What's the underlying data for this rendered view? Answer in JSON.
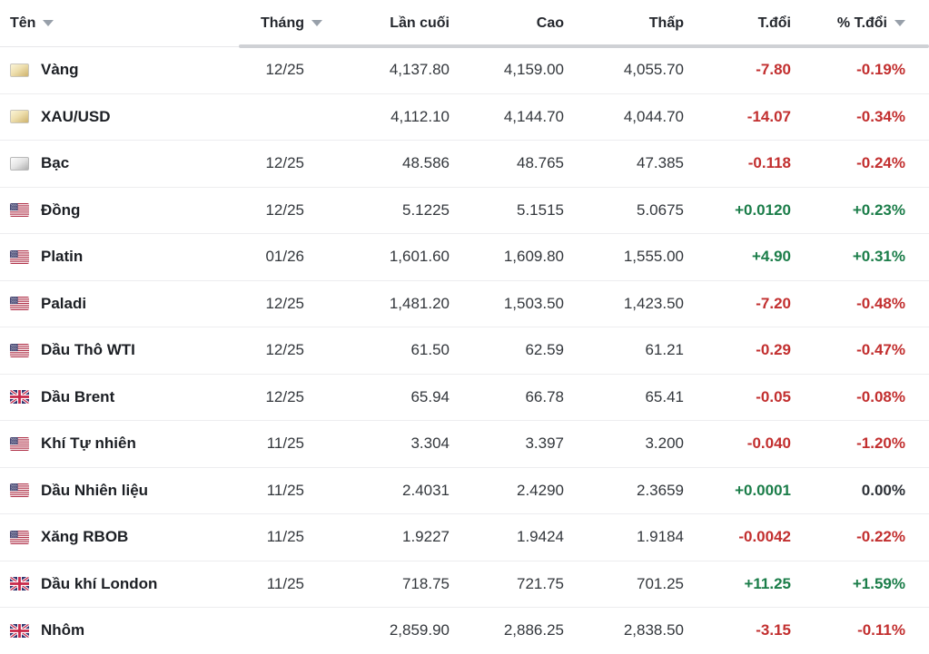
{
  "table": {
    "columns": [
      {
        "key": "name",
        "label": "Tên",
        "sortable": true
      },
      {
        "key": "month",
        "label": "Tháng",
        "sortable": true
      },
      {
        "key": "last",
        "label": "Lần cuối",
        "sortable": false
      },
      {
        "key": "high",
        "label": "Cao",
        "sortable": false
      },
      {
        "key": "low",
        "label": "Thấp",
        "sortable": false
      },
      {
        "key": "chg",
        "label": "T.đổi",
        "sortable": false
      },
      {
        "key": "pct",
        "label": "% T.đổi",
        "sortable": true
      }
    ],
    "colors": {
      "up": "#1b7d49",
      "down": "#c22f2f",
      "flat": "#2e3238"
    },
    "rows": [
      {
        "name": "Vàng",
        "icon": "gold-bar",
        "month": "12/25",
        "last": "4,137.80",
        "high": "4,159.00",
        "low": "4,055.70",
        "change": "-7.80",
        "pct": "-0.19%"
      },
      {
        "name": "XAU/USD",
        "icon": "gold-bar",
        "month": "",
        "last": "4,112.10",
        "high": "4,144.70",
        "low": "4,044.70",
        "change": "-14.07",
        "pct": "-0.34%"
      },
      {
        "name": "Bạc",
        "icon": "silver-bar",
        "month": "12/25",
        "last": "48.586",
        "high": "48.765",
        "low": "47.385",
        "change": "-0.118",
        "pct": "-0.24%"
      },
      {
        "name": "Đồng",
        "icon": "us-flag",
        "month": "12/25",
        "last": "5.1225",
        "high": "5.1515",
        "low": "5.0675",
        "change": "+0.0120",
        "pct": "+0.23%"
      },
      {
        "name": "Platin",
        "icon": "us-flag",
        "month": "01/26",
        "last": "1,601.60",
        "high": "1,609.80",
        "low": "1,555.00",
        "change": "+4.90",
        "pct": "+0.31%"
      },
      {
        "name": "Paladi",
        "icon": "us-flag",
        "month": "12/25",
        "last": "1,481.20",
        "high": "1,503.50",
        "low": "1,423.50",
        "change": "-7.20",
        "pct": "-0.48%"
      },
      {
        "name": "Dầu Thô WTI",
        "icon": "us-flag",
        "month": "12/25",
        "last": "61.50",
        "high": "62.59",
        "low": "61.21",
        "change": "-0.29",
        "pct": "-0.47%"
      },
      {
        "name": "Dầu Brent",
        "icon": "uk-flag",
        "month": "12/25",
        "last": "65.94",
        "high": "66.78",
        "low": "65.41",
        "change": "-0.05",
        "pct": "-0.08%"
      },
      {
        "name": "Khí Tự nhiên",
        "icon": "us-flag",
        "month": "11/25",
        "last": "3.304",
        "high": "3.397",
        "low": "3.200",
        "change": "-0.040",
        "pct": "-1.20%"
      },
      {
        "name": "Dầu Nhiên liệu",
        "icon": "us-flag",
        "month": "11/25",
        "last": "2.4031",
        "high": "2.4290",
        "low": "2.3659",
        "change": "+0.0001",
        "pct": "0.00%"
      },
      {
        "name": "Xăng RBOB",
        "icon": "us-flag",
        "month": "11/25",
        "last": "1.9227",
        "high": "1.9424",
        "low": "1.9184",
        "change": "-0.0042",
        "pct": "-0.22%"
      },
      {
        "name": "Dầu khí London",
        "icon": "uk-flag",
        "month": "11/25",
        "last": "718.75",
        "high": "721.75",
        "low": "701.25",
        "change": "+11.25",
        "pct": "+1.59%"
      },
      {
        "name": "Nhôm",
        "icon": "uk-flag",
        "month": "",
        "last": "2,859.90",
        "high": "2,886.25",
        "low": "2,838.50",
        "change": "-3.15",
        "pct": "-0.11%"
      }
    ]
  }
}
